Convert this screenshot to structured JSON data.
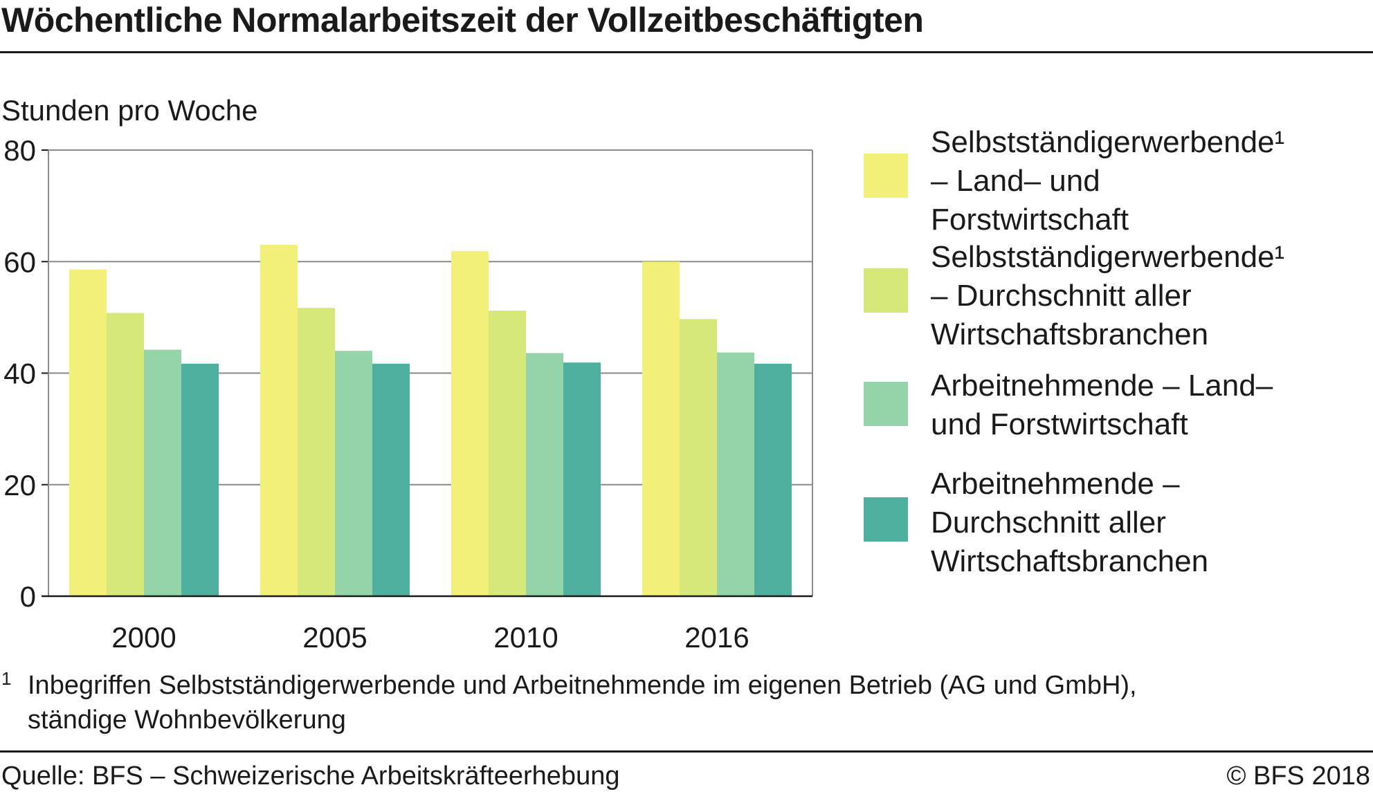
{
  "header": {
    "title": "Wöchentliche Normalarbeitszeit der Vollzeitbeschäftigten"
  },
  "chart_data": {
    "type": "bar",
    "title": "Wöchentliche Normalarbeitszeit der Vollzeitbeschäftigten",
    "ylabel": "Stunden pro Woche",
    "xlabel": "",
    "ylim": [
      0,
      80
    ],
    "yticks": [
      "0",
      "20",
      "40",
      "60",
      "80"
    ],
    "grid": true,
    "legend_position": "right",
    "categories": [
      "2000",
      "2005",
      "2010",
      "2016"
    ],
    "series": [
      {
        "name": "Selbstständigerwerbende¹ – Land– und Forstwirtschaft",
        "color": "#f2f078",
        "values": [
          58.6,
          63.0,
          61.9,
          60.0
        ]
      },
      {
        "name": "Selbstständigerwerbende¹ – Durchschnitt aller Wirtschaftsbranchen",
        "color": "#d6e87a",
        "values": [
          50.8,
          51.7,
          51.2,
          49.7
        ]
      },
      {
        "name": "Arbeitnehmende – Land– und Forstwirtschaft",
        "color": "#95d4a8",
        "values": [
          44.2,
          44.0,
          43.6,
          43.7
        ]
      },
      {
        "name": "Arbeitnehmende – Durchschnitt aller Wirtschaftsbranchen",
        "color": "#4fb0a0",
        "values": [
          41.7,
          41.7,
          41.9,
          41.7
        ]
      }
    ]
  },
  "footnote": {
    "mark": "1",
    "text": "Inbegriffen Selbstständigerwerbende und Arbeitnehmende im eigenen Betrieb (AG und GmbH), ständige Wohnbevölkerung"
  },
  "footer": {
    "source": "Quelle:  BFS – Schweizerische Arbeitskräfteerhebung",
    "copyright": "© BFS  2018"
  },
  "colors": {
    "text": "#1a1a1a",
    "grid": "#8a8a8a"
  }
}
